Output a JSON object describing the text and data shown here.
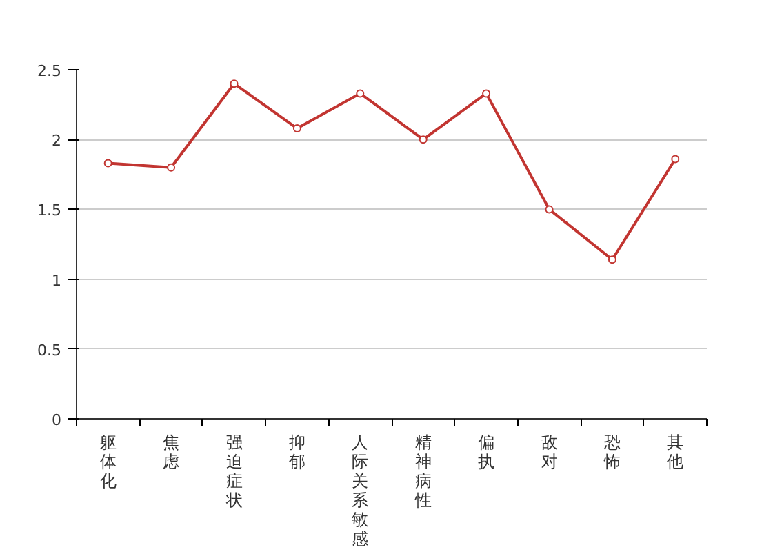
{
  "chart_data": {
    "type": "line",
    "categories": [
      "躯体化",
      "焦虑",
      "强迫症状",
      "抑郁",
      "人际关系敏感",
      "精神病性",
      "偏执",
      "敌对",
      "恐怖",
      "其他"
    ],
    "series": [
      {
        "color": "#c23531",
        "values": [
          1.83,
          1.8,
          2.4,
          2.08,
          2.33,
          2.0,
          2.33,
          1.5,
          1.14,
          1.86
        ]
      }
    ],
    "ylim": [
      0,
      2.5
    ],
    "yticks": [
      0,
      0.5,
      1,
      1.5,
      2,
      2.5
    ],
    "grid": "y",
    "marker": "circle",
    "line_style": "solid"
  }
}
